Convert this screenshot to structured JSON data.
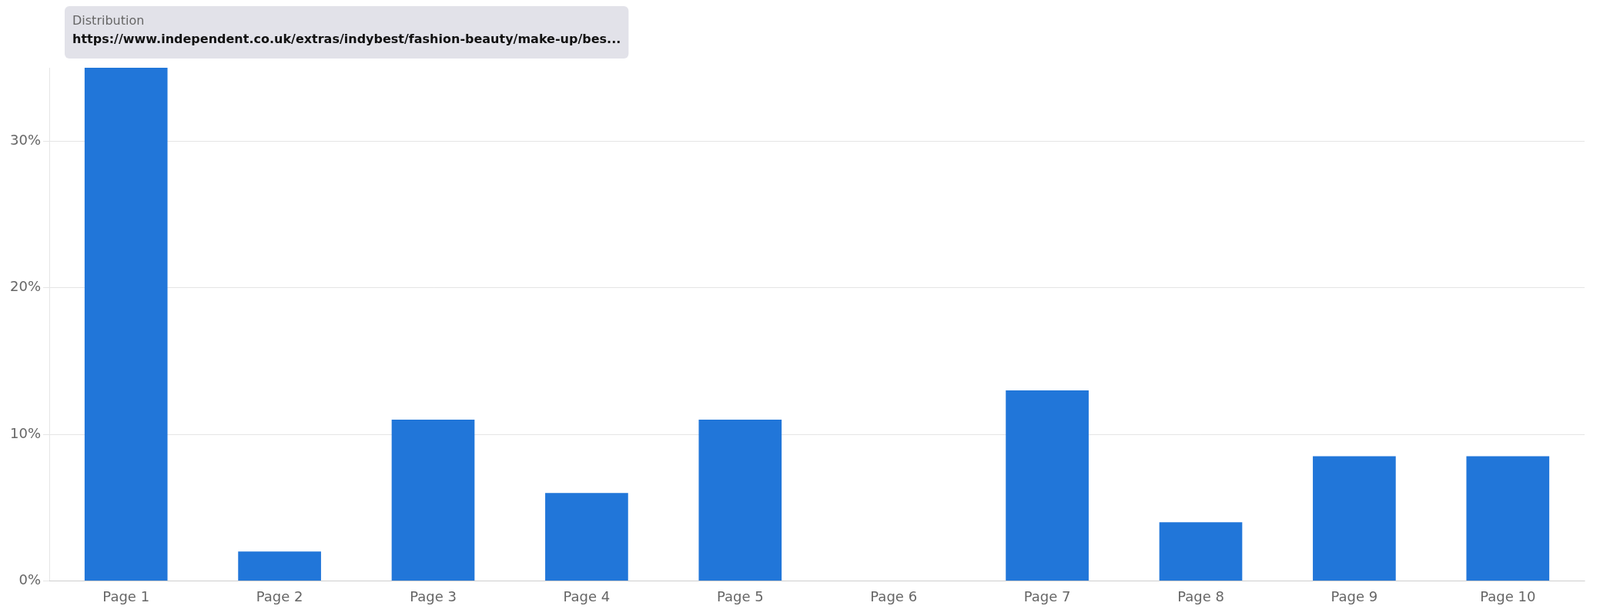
{
  "chart_data": {
    "type": "bar",
    "categories": [
      "Page 1",
      "Page 2",
      "Page 3",
      "Page 4",
      "Page 5",
      "Page 6",
      "Page 7",
      "Page 8",
      "Page 9",
      "Page 10"
    ],
    "values": [
      35.0,
      2.0,
      11.0,
      6.0,
      11.0,
      0.0,
      13.0,
      4.0,
      8.5,
      8.5
    ],
    "color": "#2176D9",
    "ylim": [
      0,
      35
    ],
    "yticks": [
      {
        "value": 0,
        "label": "0%"
      },
      {
        "value": 10,
        "label": "10%"
      },
      {
        "value": 20,
        "label": "20%"
      },
      {
        "value": 30,
        "label": "30%"
      }
    ],
    "grid": true,
    "annotations": [
      "Distribution",
      "https://www.independent.co.uk/extras/indybest/fashion-beauty/make-up/bes..."
    ]
  }
}
